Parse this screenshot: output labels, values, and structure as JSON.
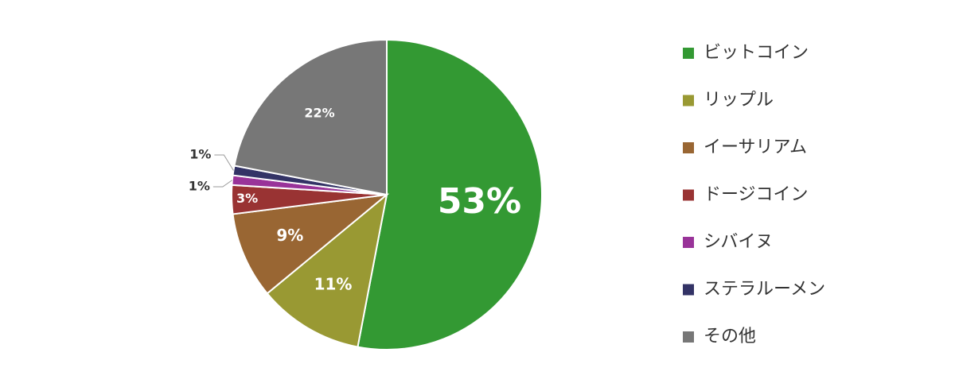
{
  "chart_data": {
    "type": "pie",
    "categories": [
      "ビットコイン",
      "リップル",
      "イーサリアム",
      "ドージコイン",
      "シバイヌ",
      "ステラルーメン",
      "その他"
    ],
    "values": [
      53,
      11,
      9,
      3,
      1,
      1,
      22
    ],
    "value_labels": [
      "53%",
      "11%",
      "9%",
      "3%",
      "1%",
      "1%",
      "22%"
    ],
    "colors": [
      "#339933",
      "#999933",
      "#996633",
      "#993333",
      "#993399",
      "#333366",
      "#777777"
    ],
    "legend": "right"
  }
}
